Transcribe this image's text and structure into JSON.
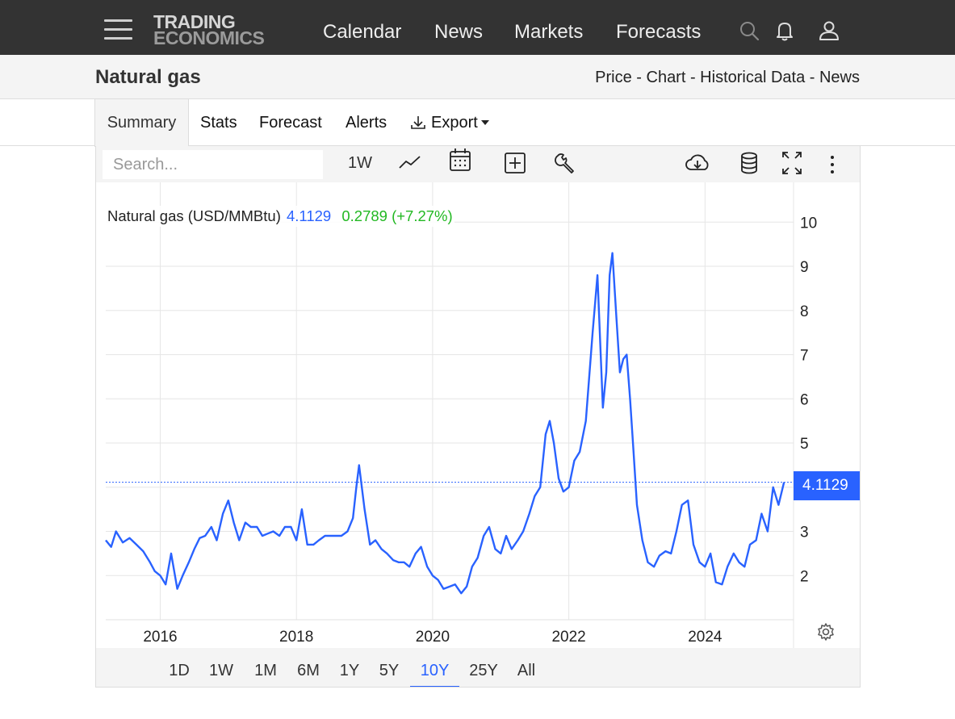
{
  "header": {
    "logo_line1": "TRADING",
    "logo_line2": "ECONOMICS",
    "nav": [
      "Calendar",
      "News",
      "Markets",
      "Forecasts"
    ],
    "icons": [
      "menu-icon",
      "search-icon",
      "bell-icon",
      "user-icon"
    ]
  },
  "page": {
    "title": "Natural gas",
    "subnav": "Price - Chart - Historical Data - News"
  },
  "tabs": [
    "Summary",
    "Stats",
    "Forecast",
    "Alerts",
    "Export"
  ],
  "active_tab": "Summary",
  "toolbar": {
    "search_placeholder": "Search...",
    "interval": "1W",
    "icons": [
      "line-chart-icon",
      "calendar-icon",
      "add-indicator-icon",
      "wrench-icon",
      "cloud-download-icon",
      "database-icon",
      "fullscreen-icon",
      "more-vertical-icon"
    ]
  },
  "legend": {
    "name": "Natural gas (USD/MMBtu)",
    "value": "4.1129",
    "change": "0.2789 (+7.27%)"
  },
  "colors": {
    "line": "#2962ff",
    "change": "#22b822",
    "header_bg": "#333333"
  },
  "ranges": [
    "1D",
    "1W",
    "1M",
    "6M",
    "1Y",
    "5Y",
    "10Y",
    "25Y",
    "All"
  ],
  "active_range": "10Y",
  "chart_data": {
    "type": "line",
    "title": "Natural gas (USD/MMBtu)",
    "xlabel": "",
    "ylabel": "",
    "ylim": [
      1.0,
      10.9
    ],
    "xlim": [
      2015.2,
      2025.3
    ],
    "grid": true,
    "x_ticks": [
      "2016",
      "2018",
      "2020",
      "2022",
      "2024"
    ],
    "y_ticks": [
      2,
      3,
      4,
      5,
      6,
      7,
      8,
      9,
      10
    ],
    "last_value_label": "4.1129",
    "series": [
      {
        "name": "Natural gas",
        "x": [
          2015.2,
          2015.28,
          2015.35,
          2015.45,
          2015.55,
          2015.65,
          2015.75,
          2015.85,
          2015.92,
          2016.0,
          2016.08,
          2016.16,
          2016.25,
          2016.33,
          2016.42,
          2016.5,
          2016.58,
          2016.66,
          2016.75,
          2016.83,
          2016.92,
          2017.0,
          2017.08,
          2017.16,
          2017.25,
          2017.33,
          2017.42,
          2017.5,
          2017.58,
          2017.66,
          2017.75,
          2017.83,
          2017.92,
          2018.0,
          2018.08,
          2018.16,
          2018.25,
          2018.33,
          2018.42,
          2018.5,
          2018.58,
          2018.66,
          2018.75,
          2018.83,
          2018.88,
          2018.92,
          2019.0,
          2019.08,
          2019.16,
          2019.25,
          2019.33,
          2019.42,
          2019.5,
          2019.58,
          2019.66,
          2019.75,
          2019.83,
          2019.92,
          2020.0,
          2020.08,
          2020.16,
          2020.25,
          2020.33,
          2020.42,
          2020.5,
          2020.58,
          2020.66,
          2020.75,
          2020.83,
          2020.92,
          2021.0,
          2021.08,
          2021.16,
          2021.25,
          2021.33,
          2021.42,
          2021.5,
          2021.58,
          2021.66,
          2021.72,
          2021.78,
          2021.85,
          2021.92,
          2022.0,
          2022.08,
          2022.16,
          2022.25,
          2022.3,
          2022.35,
          2022.42,
          2022.5,
          2022.55,
          2022.6,
          2022.64,
          2022.7,
          2022.75,
          2022.8,
          2022.85,
          2022.9,
          2022.95,
          2023.0,
          2023.08,
          2023.16,
          2023.25,
          2023.33,
          2023.42,
          2023.5,
          2023.58,
          2023.66,
          2023.75,
          2023.83,
          2023.92,
          2024.0,
          2024.08,
          2024.16,
          2024.25,
          2024.33,
          2024.42,
          2024.5,
          2024.58,
          2024.66,
          2024.75,
          2024.83,
          2024.92,
          2025.0,
          2025.08,
          2025.16
        ],
        "values": [
          2.8,
          2.65,
          3.0,
          2.75,
          2.85,
          2.7,
          2.55,
          2.3,
          2.1,
          2.0,
          1.8,
          2.5,
          1.7,
          2.0,
          2.3,
          2.6,
          2.85,
          2.9,
          3.1,
          2.8,
          3.4,
          3.7,
          3.2,
          2.8,
          3.2,
          3.1,
          3.1,
          2.9,
          2.95,
          3.0,
          2.9,
          3.1,
          3.1,
          2.8,
          3.5,
          2.7,
          2.7,
          2.8,
          2.9,
          2.9,
          2.9,
          2.9,
          3.0,
          3.3,
          4.0,
          4.5,
          3.5,
          2.7,
          2.8,
          2.6,
          2.5,
          2.35,
          2.3,
          2.3,
          2.2,
          2.5,
          2.65,
          2.2,
          2.0,
          1.9,
          1.7,
          1.75,
          1.8,
          1.6,
          1.75,
          2.2,
          2.4,
          2.9,
          3.1,
          2.6,
          2.5,
          2.9,
          2.6,
          2.8,
          3.0,
          3.4,
          3.8,
          4.0,
          5.2,
          5.5,
          5.0,
          4.2,
          3.9,
          4.0,
          4.6,
          4.8,
          5.5,
          6.5,
          7.5,
          8.8,
          5.8,
          6.6,
          8.8,
          9.3,
          7.8,
          6.6,
          6.9,
          7.0,
          6.0,
          4.8,
          3.6,
          2.8,
          2.3,
          2.2,
          2.45,
          2.55,
          2.5,
          3.0,
          3.6,
          3.7,
          2.7,
          2.3,
          2.2,
          2.5,
          1.85,
          1.8,
          2.2,
          2.5,
          2.3,
          2.2,
          2.7,
          2.8,
          3.4,
          3.0,
          4.0,
          3.6,
          4.1129
        ]
      }
    ]
  }
}
